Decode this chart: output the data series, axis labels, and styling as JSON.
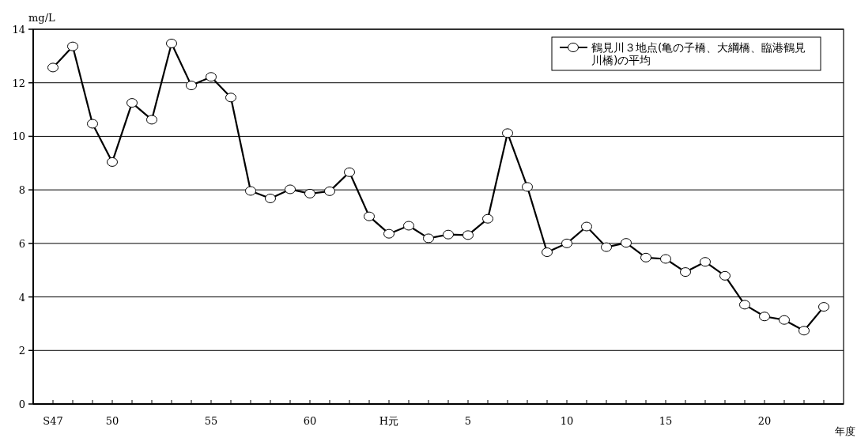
{
  "chart_data": {
    "type": "line",
    "xlabel": "年度",
    "ylabel": "mg/L",
    "categories": [
      "S47",
      null,
      null,
      "50",
      null,
      null,
      null,
      null,
      "55",
      null,
      null,
      null,
      null,
      "60",
      null,
      null,
      null,
      "H元",
      null,
      null,
      null,
      "5",
      null,
      null,
      null,
      null,
      "10",
      null,
      null,
      null,
      null,
      "15",
      null,
      null,
      null,
      null,
      "20",
      null,
      null,
      null
    ],
    "series": [
      {
        "name": "鶴見川３地点(亀の子橋、大綱橋、臨港鶴見川橋)の平均",
        "color": "#000000",
        "values": [
          12.57,
          13.36,
          10.47,
          9.04,
          11.25,
          10.62,
          13.47,
          11.9,
          12.22,
          11.45,
          7.96,
          7.68,
          8.02,
          7.86,
          7.95,
          8.66,
          7.01,
          6.36,
          6.66,
          6.19,
          6.33,
          6.31,
          6.92,
          10.12,
          8.11,
          5.67,
          6.0,
          6.63,
          5.86,
          6.02,
          5.47,
          5.42,
          4.93,
          5.31,
          4.79,
          3.71,
          3.27,
          3.14,
          2.74,
          3.63
        ]
      }
    ],
    "ylim": [
      0,
      14
    ],
    "yticks": [
      0,
      2,
      4,
      6,
      8,
      10,
      12,
      14
    ],
    "grid": "y",
    "legend": "top right",
    "marker": "circle",
    "line_style": "solid"
  }
}
